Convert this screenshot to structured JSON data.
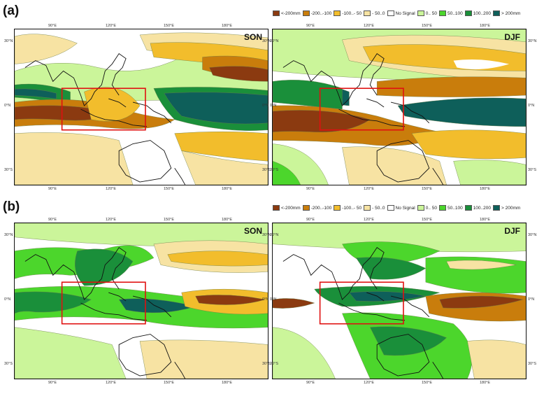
{
  "figure": {
    "panel_a_label": "(a)",
    "panel_b_label": "(b)"
  },
  "legend": {
    "items": [
      {
        "label": "<-200mm",
        "color": "#8b3a10"
      },
      {
        "label": "-200..-100",
        "color": "#c97d0c"
      },
      {
        "label": "-100..- 50",
        "color": "#f2bd2c"
      },
      {
        "label": "- 50..0",
        "color": "#f7e3a3"
      },
      {
        "label": "No Signal",
        "color": "#ffffff"
      },
      {
        "label": "0.. 50",
        "color": "#cbf59a"
      },
      {
        "label": "50..100",
        "color": "#4cd62c"
      },
      {
        "label": "100..200",
        "color": "#1a8f3a"
      },
      {
        "label": "> 200mm",
        "color": "#0e5f5a"
      }
    ]
  },
  "axes": {
    "lon_ticks": [
      "90°E",
      "120°E",
      "150°E",
      "180°E"
    ],
    "lat_ticks": [
      "30°N",
      "0°N",
      "30°S"
    ]
  },
  "maps": [
    {
      "season": "SON",
      "panel": "a"
    },
    {
      "season": "DJF",
      "panel": "a"
    },
    {
      "season": "SON",
      "panel": "b"
    },
    {
      "season": "DJF",
      "panel": "b"
    }
  ],
  "colors": {
    "highlight_box": "#e01010",
    "coastline": "#111111"
  }
}
